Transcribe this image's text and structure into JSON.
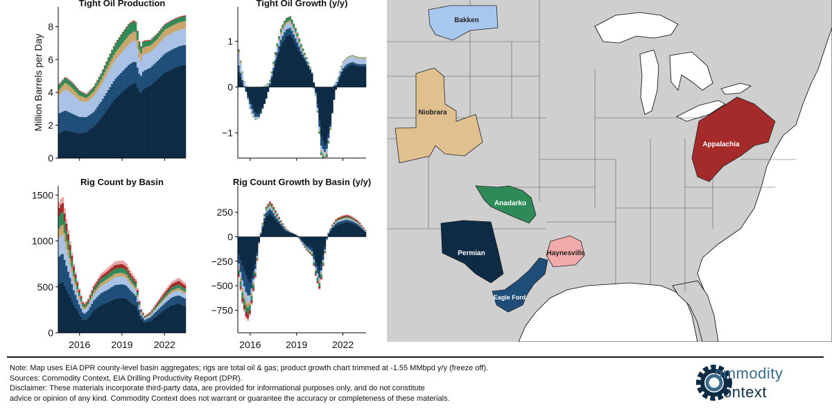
{
  "chart_data": [
    {
      "type": "area",
      "title": "Tight Oil Production",
      "ylabel": "Million Barrels per Day",
      "xlabel": "",
      "ylim": [
        0,
        9.2
      ],
      "yticks": [
        0,
        2,
        4,
        6,
        8
      ],
      "xrange": [
        2014.5,
        2023.5
      ],
      "xticks": [
        2016,
        2019,
        2022
      ],
      "stacked": true,
      "x": [
        2014.5,
        2015.0,
        2015.5,
        2016.0,
        2016.5,
        2017.0,
        2017.5,
        2018.0,
        2018.5,
        2019.0,
        2019.5,
        2019.9,
        2020.0,
        2020.3,
        2020.5,
        2021.0,
        2021.5,
        2022.0,
        2022.5,
        2023.0,
        2023.5
      ],
      "series": [
        {
          "color": "#0d2b45",
          "values": [
            1.5,
            1.7,
            1.6,
            1.5,
            1.6,
            1.9,
            2.4,
            3.0,
            3.6,
            4.0,
            4.4,
            4.6,
            4.5,
            3.9,
            4.2,
            4.4,
            4.8,
            5.2,
            5.4,
            5.6,
            5.7
          ]
        },
        {
          "color": "#1f4e79",
          "values": [
            1.2,
            1.2,
            1.1,
            1.0,
            0.9,
            0.9,
            1.0,
            1.1,
            1.2,
            1.25,
            1.3,
            1.3,
            1.3,
            1.0,
            1.1,
            1.1,
            1.1,
            1.15,
            1.2,
            1.2,
            1.2
          ]
        },
        {
          "color": "#a9c2e6",
          "values": [
            1.1,
            1.3,
            1.2,
            1.0,
            0.9,
            0.95,
            1.0,
            1.1,
            1.15,
            1.2,
            1.25,
            1.3,
            1.25,
            0.9,
            1.0,
            0.95,
            0.95,
            1.0,
            1.0,
            1.0,
            1.0
          ]
        },
        {
          "color": "#c9a66b",
          "values": [
            0.3,
            0.4,
            0.35,
            0.3,
            0.25,
            0.3,
            0.35,
            0.4,
            0.45,
            0.5,
            0.55,
            0.55,
            0.55,
            0.45,
            0.45,
            0.4,
            0.4,
            0.45,
            0.45,
            0.45,
            0.45
          ]
        },
        {
          "color": "#2e8b57",
          "values": [
            0.3,
            0.3,
            0.3,
            0.25,
            0.2,
            0.25,
            0.3,
            0.4,
            0.5,
            0.6,
            0.65,
            0.6,
            0.55,
            0.4,
            0.35,
            0.3,
            0.3,
            0.3,
            0.3,
            0.3,
            0.3
          ]
        },
        {
          "color": "#a52a2a",
          "values": [
            0.04,
            0.04,
            0.04,
            0.04,
            0.04,
            0.04,
            0.05,
            0.05,
            0.05,
            0.05,
            0.05,
            0.05,
            0.05,
            0.04,
            0.04,
            0.04,
            0.04,
            0.04,
            0.04,
            0.04,
            0.04
          ]
        },
        {
          "color": "#e8a4a4",
          "values": [
            0.03,
            0.03,
            0.03,
            0.03,
            0.03,
            0.03,
            0.03,
            0.03,
            0.03,
            0.03,
            0.03,
            0.03,
            0.03,
            0.03,
            0.03,
            0.03,
            0.03,
            0.03,
            0.03,
            0.03,
            0.03
          ]
        }
      ]
    },
    {
      "type": "area",
      "title": "Tight Oil Growth (y/y)",
      "ylabel": "",
      "xlabel": "",
      "ylim": [
        -1.55,
        1.75
      ],
      "yticks": [
        -1,
        0,
        1
      ],
      "xrange": [
        2015.2,
        2023.5
      ],
      "xticks": [
        2016,
        2019,
        2022
      ],
      "stacked": true,
      "x": [
        2015.2,
        2015.5,
        2016.0,
        2016.3,
        2016.6,
        2017.0,
        2017.4,
        2017.7,
        2018.0,
        2018.3,
        2018.6,
        2019.0,
        2019.3,
        2019.6,
        2020.0,
        2020.3,
        2020.6,
        2020.9,
        2021.2,
        2021.5,
        2021.8,
        2022.0,
        2022.3,
        2022.6,
        2023.0,
        2023.3,
        2023.5
      ],
      "series": [
        {
          "color": "#0d2b45",
          "values": [
            0.4,
            0.1,
            -0.3,
            -0.55,
            -0.6,
            -0.3,
            0.2,
            0.6,
            0.9,
            1.1,
            1.15,
            0.9,
            0.7,
            0.55,
            0.3,
            -0.2,
            -1.1,
            -1.3,
            -0.8,
            -0.1,
            0.2,
            0.35,
            0.45,
            0.5,
            0.45,
            0.45,
            0.45
          ]
        },
        {
          "color": "#1f4e79",
          "values": [
            0.15,
            0.05,
            -0.1,
            -0.1,
            -0.05,
            0.0,
            0.05,
            0.1,
            0.15,
            0.15,
            0.15,
            0.12,
            0.08,
            0.05,
            0.0,
            -0.05,
            -0.2,
            -0.15,
            -0.05,
            0.05,
            0.06,
            0.06,
            0.06,
            0.05,
            0.05,
            0.05,
            0.05
          ]
        },
        {
          "color": "#a9c2e6",
          "values": [
            0.3,
            0.15,
            -0.1,
            -0.05,
            -0.03,
            0.02,
            0.05,
            0.1,
            0.12,
            0.12,
            0.12,
            0.1,
            0.06,
            0.04,
            0.01,
            -0.05,
            -0.1,
            -0.1,
            -0.02,
            0.05,
            0.08,
            0.12,
            0.12,
            0.12,
            0.12,
            0.12,
            0.12
          ]
        },
        {
          "color": "#c9a66b",
          "values": [
            0.05,
            0.02,
            -0.02,
            -0.01,
            0.0,
            0.01,
            0.02,
            0.03,
            0.04,
            0.04,
            0.04,
            0.04,
            0.03,
            0.02,
            0.01,
            -0.01,
            -0.04,
            -0.04,
            -0.01,
            0.01,
            0.02,
            0.02,
            0.02,
            0.02,
            0.02,
            0.02,
            0.02
          ]
        },
        {
          "color": "#2e8b57",
          "values": [
            0.03,
            0.01,
            -0.01,
            -0.01,
            0.0,
            0.01,
            0.03,
            0.05,
            0.07,
            0.08,
            0.08,
            0.07,
            0.05,
            0.03,
            0.01,
            -0.02,
            -0.06,
            -0.06,
            -0.02,
            0.0,
            0.01,
            0.01,
            0.01,
            0.01,
            0.01,
            0.01,
            0.01
          ]
        },
        {
          "color": "#a52a2a",
          "values": [
            0.01,
            0.0,
            0.0,
            0.0,
            0.0,
            0.0,
            0.0,
            0.01,
            0.01,
            0.01,
            0.01,
            0.01,
            0.01,
            0.0,
            0.0,
            0.0,
            -0.01,
            -0.01,
            0.0,
            0.0,
            0.0,
            0.0,
            0.0,
            0.0,
            0.0,
            0.0,
            0.0
          ]
        },
        {
          "color": "#e8a4a4",
          "values": [
            0.0,
            0.0,
            0.0,
            0.0,
            0.0,
            0.0,
            0.0,
            0.0,
            0.0,
            0.0,
            0.0,
            0.0,
            0.0,
            0.0,
            0.0,
            0.0,
            0.0,
            0.0,
            0.0,
            0.0,
            0.0,
            0.0,
            0.0,
            0.0,
            0.0,
            0.0,
            0.0
          ]
        }
      ]
    },
    {
      "type": "area",
      "title": "Rig Count by Basin",
      "ylabel": "",
      "xlabel": "",
      "ylim": [
        0,
        1600
      ],
      "yticks": [
        0,
        500,
        1000,
        1500
      ],
      "xrange": [
        2014.5,
        2023.5
      ],
      "xticks": [
        2016,
        2019,
        2022
      ],
      "stacked": true,
      "x": [
        2014.5,
        2014.8,
        2015.2,
        2015.6,
        2016.0,
        2016.3,
        2016.6,
        2017.0,
        2017.5,
        2018.0,
        2018.5,
        2019.0,
        2019.3,
        2019.6,
        2020.0,
        2020.3,
        2020.6,
        2021.0,
        2021.5,
        2022.0,
        2022.5,
        2023.0,
        2023.3,
        2023.5
      ],
      "series": [
        {
          "color": "#0d2b45",
          "values": [
            520,
            560,
            430,
            300,
            200,
            130,
            160,
            240,
            300,
            330,
            370,
            380,
            370,
            330,
            290,
            150,
            110,
            130,
            190,
            250,
            300,
            320,
            300,
            290
          ]
        },
        {
          "color": "#1f4e79",
          "values": [
            300,
            310,
            240,
            160,
            100,
            70,
            80,
            110,
            130,
            140,
            150,
            150,
            145,
            130,
            110,
            50,
            30,
            40,
            55,
            70,
            85,
            90,
            85,
            80
          ]
        },
        {
          "color": "#a9c2e6",
          "values": [
            200,
            210,
            160,
            100,
            60,
            40,
            45,
            60,
            75,
            80,
            85,
            85,
            80,
            70,
            60,
            25,
            15,
            20,
            30,
            40,
            50,
            55,
            50,
            50
          ]
        },
        {
          "color": "#c9a66b",
          "values": [
            100,
            110,
            80,
            50,
            30,
            20,
            22,
            30,
            35,
            38,
            40,
            40,
            38,
            33,
            28,
            12,
            8,
            10,
            15,
            20,
            24,
            25,
            24,
            23
          ]
        },
        {
          "color": "#2e8b57",
          "values": [
            130,
            140,
            100,
            60,
            35,
            25,
            28,
            35,
            45,
            50,
            55,
            55,
            50,
            45,
            38,
            15,
            10,
            12,
            20,
            28,
            35,
            38,
            35,
            33
          ]
        },
        {
          "color": "#a52a2a",
          "values": [
            90,
            100,
            70,
            45,
            25,
            15,
            18,
            25,
            30,
            35,
            38,
            40,
            38,
            33,
            28,
            12,
            8,
            10,
            18,
            26,
            35,
            40,
            38,
            36
          ]
        },
        {
          "color": "#e8a4a4",
          "values": [
            60,
            65,
            45,
            30,
            18,
            12,
            14,
            20,
            28,
            35,
            38,
            40,
            38,
            33,
            28,
            12,
            8,
            10,
            16,
            22,
            28,
            32,
            30,
            28
          ]
        }
      ]
    },
    {
      "type": "area",
      "title": "Rig Count Growth by Basin (y/y)",
      "ylabel": "",
      "xlabel": "",
      "ylim": [
        -980,
        520
      ],
      "yticks": [
        -750,
        -500,
        -250,
        0,
        250
      ],
      "xrange": [
        2015.2,
        2023.5
      ],
      "xticks": [
        2016,
        2019,
        2022
      ],
      "stacked": true,
      "x": [
        2015.2,
        2015.5,
        2015.8,
        2016.0,
        2016.3,
        2016.6,
        2017.0,
        2017.3,
        2017.6,
        2018.0,
        2018.3,
        2018.6,
        2019.0,
        2019.3,
        2019.6,
        2020.0,
        2020.3,
        2020.5,
        2020.7,
        2021.0,
        2021.3,
        2021.6,
        2022.0,
        2022.3,
        2022.6,
        2023.0,
        2023.3,
        2023.5
      ],
      "series": [
        {
          "color": "#0d2b45",
          "values": [
            -150,
            -300,
            -420,
            -480,
            -300,
            -20,
            200,
            240,
            180,
            110,
            60,
            40,
            20,
            -30,
            -80,
            -120,
            -280,
            -350,
            -200,
            20,
            80,
            120,
            140,
            150,
            140,
            110,
            70,
            40
          ]
        },
        {
          "color": "#1f4e79",
          "values": [
            -80,
            -150,
            -180,
            -120,
            -60,
            0,
            40,
            50,
            40,
            20,
            10,
            5,
            0,
            -10,
            -20,
            -30,
            -70,
            -80,
            -50,
            0,
            15,
            25,
            25,
            25,
            20,
            15,
            10,
            5
          ]
        },
        {
          "color": "#a9c2e6",
          "values": [
            -40,
            -80,
            -90,
            -60,
            -30,
            0,
            20,
            25,
            20,
            10,
            5,
            0,
            0,
            -5,
            -10,
            -15,
            -30,
            -35,
            -20,
            0,
            8,
            12,
            14,
            14,
            12,
            10,
            6,
            3
          ]
        },
        {
          "color": "#c9a66b",
          "values": [
            -20,
            -40,
            -45,
            -30,
            -15,
            0,
            10,
            12,
            10,
            5,
            2,
            0,
            0,
            -3,
            -5,
            -8,
            -15,
            -18,
            -10,
            0,
            4,
            6,
            7,
            7,
            6,
            5,
            3,
            2
          ]
        },
        {
          "color": "#2e8b57",
          "values": [
            -30,
            -60,
            -70,
            -50,
            -25,
            0,
            15,
            20,
            15,
            8,
            4,
            2,
            0,
            -4,
            -8,
            -12,
            -30,
            -35,
            -20,
            0,
            6,
            10,
            12,
            12,
            10,
            8,
            5,
            3
          ]
        },
        {
          "color": "#a52a2a",
          "values": [
            -20,
            -40,
            -50,
            -35,
            -20,
            0,
            10,
            15,
            12,
            8,
            4,
            2,
            0,
            -3,
            -6,
            -8,
            -18,
            -22,
            -12,
            0,
            8,
            12,
            14,
            14,
            12,
            10,
            6,
            4
          ]
        },
        {
          "color": "#e8a4a4",
          "values": [
            -10,
            -20,
            -25,
            -18,
            -10,
            0,
            6,
            8,
            7,
            5,
            3,
            2,
            0,
            -2,
            -4,
            -6,
            -10,
            -12,
            -6,
            0,
            4,
            6,
            8,
            8,
            7,
            6,
            4,
            2
          ]
        }
      ]
    }
  ],
  "map": {
    "basins": [
      {
        "name": "Bakken",
        "color": "#a9c8f0"
      },
      {
        "name": "Niobrara",
        "color": "#dfc08e"
      },
      {
        "name": "Anadarko",
        "color": "#2e8b57"
      },
      {
        "name": "Permian",
        "color": "#0d2b45"
      },
      {
        "name": "Haynesville",
        "color": "#f2a9a9"
      },
      {
        "name": "Eagle Ford",
        "color": "#1f4e79"
      },
      {
        "name": "Appalachia",
        "color": "#a52a2a"
      }
    ],
    "land_color": "#cfcfcf",
    "water_color": "#ffffff"
  },
  "footnote": {
    "note": "Note: Map uses EIA DPR county-level basin aggregates; rigs are total oil & gas; product growth chart trimmed at -1.55 MMbpd y/y (freeze off).",
    "sources": "Sources: Commodity Context, EIA Drilling Productivity Report (DPR).",
    "disclaimer1": "Disclaimer: These materials incorporate third-party data, are provided for informational purposes only, and do not constitute",
    "disclaimer2": "advice or opinion of any kind. Commodity Context does not warrant or guarantee the accuracy or completeness of these materials."
  },
  "logo": {
    "line1": "ommodity",
    "line2": "ontext",
    "icon": "gear-icon"
  }
}
